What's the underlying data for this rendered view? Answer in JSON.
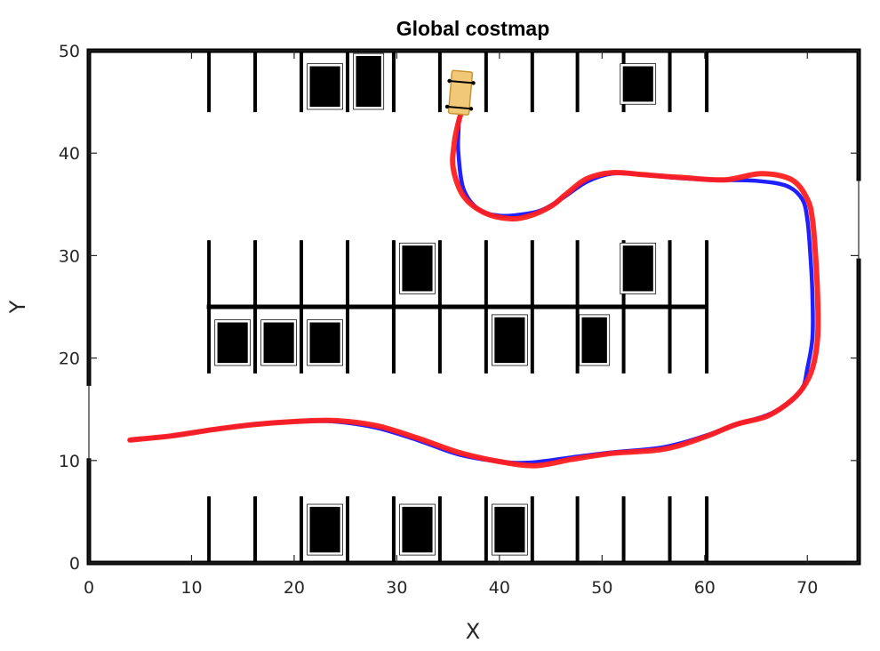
{
  "chart_data": {
    "type": "line",
    "title": "Global costmap",
    "xlabel": "X",
    "ylabel": "Y",
    "xlim": [
      0,
      75
    ],
    "ylim": [
      0,
      50
    ],
    "xticks": [
      0,
      10,
      20,
      30,
      40,
      50,
      60,
      70
    ],
    "yticks": [
      0,
      10,
      20,
      30,
      40,
      50
    ],
    "colors": {
      "obstacle": "#000000",
      "path_blue": "#1f1fff",
      "path_red": "#ff1f1f",
      "vehicle_fill": "#f0c878",
      "vehicle_edge": "#c89632",
      "axis": "#262626"
    },
    "map": {
      "walls": [
        {
          "x": [
            0,
            0
          ],
          "y": [
            0,
            10
          ]
        },
        {
          "x": [
            0,
            0
          ],
          "y": [
            17.5,
            50
          ]
        },
        {
          "x": [
            0,
            75
          ],
          "y": [
            50,
            50
          ]
        },
        {
          "x": [
            0,
            75
          ],
          "y": [
            0,
            0
          ]
        },
        {
          "x": [
            75,
            75
          ],
          "y": [
            0,
            29.5
          ]
        },
        {
          "x": [
            75,
            75
          ],
          "y": [
            37.5,
            50
          ]
        },
        {
          "x": [
            11.7,
            60
          ],
          "y": [
            25,
            25
          ]
        }
      ],
      "top_divider_x": [
        11.7,
        16.2,
        20.7,
        25.2,
        29.7,
        34.2,
        38.7,
        43.2,
        47.6,
        52.1,
        56.6,
        60.2
      ],
      "top_divider_y": [
        44,
        50
      ],
      "middle_divider_x": [
        11.7,
        16.2,
        20.7,
        25.2,
        29.7,
        34.2,
        38.7,
        43.2,
        47.6,
        52.1,
        56.6,
        60.2
      ],
      "middle_divider_y": [
        18.5,
        31.5
      ],
      "bottom_divider_x": [
        11.7,
        16.2,
        20.7,
        25.2,
        29.7,
        34.2,
        38.7,
        43.2,
        47.6,
        52.1,
        56.6,
        60.2
      ],
      "bottom_divider_y": [
        0,
        6.5
      ],
      "parked_cars": [
        {
          "x": [
            21.5,
            24.5
          ],
          "y": [
            44.5,
            48.5
          ]
        },
        {
          "x": [
            26.0,
            28.5
          ],
          "y": [
            44.5,
            49.5
          ]
        },
        {
          "x": [
            52.0,
            55.0
          ],
          "y": [
            45.0,
            48.5
          ]
        },
        {
          "x": [
            30.5,
            33.5
          ],
          "y": [
            26.5,
            31.0
          ]
        },
        {
          "x": [
            52.0,
            55.0
          ],
          "y": [
            26.5,
            31.0
          ]
        },
        {
          "x": [
            12.5,
            15.5
          ],
          "y": [
            19.5,
            23.5
          ]
        },
        {
          "x": [
            17.0,
            20.0
          ],
          "y": [
            19.5,
            23.5
          ]
        },
        {
          "x": [
            21.5,
            24.5
          ],
          "y": [
            19.5,
            23.5
          ]
        },
        {
          "x": [
            39.5,
            42.5
          ],
          "y": [
            19.5,
            24.0
          ]
        },
        {
          "x": [
            48.0,
            50.5
          ],
          "y": [
            19.5,
            24.0
          ]
        },
        {
          "x": [
            21.5,
            24.5
          ],
          "y": [
            1.0,
            5.5
          ]
        },
        {
          "x": [
            30.5,
            33.5
          ],
          "y": [
            1.0,
            5.5
          ]
        },
        {
          "x": [
            39.5,
            42.5
          ],
          "y": [
            1.0,
            5.5
          ]
        }
      ]
    },
    "series": [
      {
        "x": [
          4,
          8,
          12,
          16,
          20,
          24,
          28,
          32,
          36,
          40,
          43,
          47,
          51,
          56,
          60,
          63,
          66,
          68,
          69.5,
          70,
          70.5,
          70.5,
          70.3,
          70,
          69.5,
          68,
          65,
          61,
          57,
          54,
          51,
          48.5,
          46,
          44,
          42,
          40,
          38,
          36.5,
          36,
          36,
          36.1,
          36.3
        ],
        "y": [
          12,
          12.4,
          13,
          13.5,
          13.8,
          13.8,
          13.2,
          12,
          10.6,
          9.9,
          9.8,
          10.3,
          10.8,
          11.3,
          12.4,
          13.5,
          14.4,
          15.5,
          17,
          19,
          22,
          26,
          30,
          33.5,
          35.5,
          36.8,
          37.3,
          37.4,
          37.6,
          37.9,
          38,
          37.2,
          35.5,
          34.4,
          34,
          33.9,
          34.5,
          36.5,
          40,
          42,
          43.5,
          44
        ]
      },
      {
        "x": [
          4,
          8,
          12,
          16,
          20,
          24,
          28,
          32,
          36,
          40,
          43.5,
          47,
          51,
          56,
          60,
          63,
          66,
          68,
          69.5,
          70.5,
          71,
          71,
          70.8,
          70.5,
          70,
          68.5,
          65.5,
          62,
          58,
          54,
          51,
          48.5,
          46.5,
          45,
          43,
          41,
          38.5,
          36.5,
          35.5,
          35.6,
          36,
          36.3
        ],
        "y": [
          12,
          12.4,
          13,
          13.5,
          13.8,
          13.9,
          13.4,
          12.2,
          10.8,
          9.9,
          9.5,
          10.1,
          10.7,
          11.1,
          12.3,
          13.5,
          14.3,
          15.5,
          17,
          19,
          22,
          26,
          30,
          33.5,
          35.5,
          37.4,
          38,
          37.4,
          37.6,
          37.9,
          38.1,
          37.5,
          36,
          34.8,
          33.9,
          33.6,
          34.2,
          35.8,
          38.5,
          41,
          43,
          44
        ]
      }
    ],
    "vehicle": {
      "x": [
        35.2,
        37.2
      ],
      "y": [
        43.8,
        48.0
      ]
    }
  }
}
